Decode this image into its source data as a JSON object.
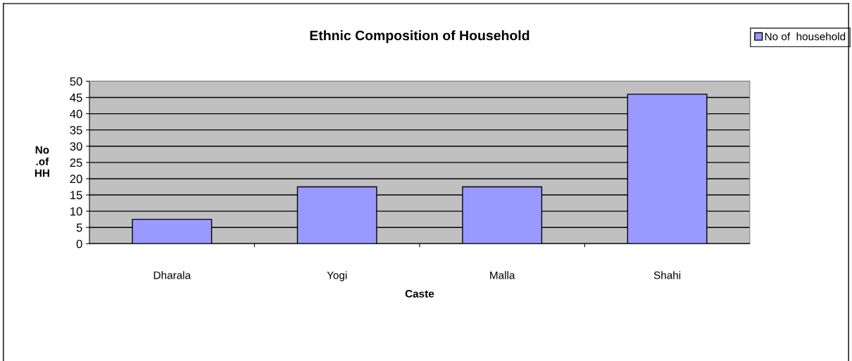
{
  "chart_data": {
    "type": "bar",
    "title": "Ethnic Composition of Household",
    "xlabel": "Caste",
    "ylabel": "No\n.of\nHH",
    "categories": [
      "Dharala",
      "Yogi",
      "Malla",
      "Shahi"
    ],
    "series": [
      {
        "name": "No of  household",
        "color": "#9999ff",
        "values": [
          7.5,
          17.5,
          17.5,
          46
        ]
      }
    ],
    "ylim": [
      0,
      50
    ],
    "yticks": [
      0,
      5,
      10,
      15,
      20,
      25,
      30,
      35,
      40,
      45,
      50
    ],
    "grid": "y",
    "legend": "top right"
  }
}
